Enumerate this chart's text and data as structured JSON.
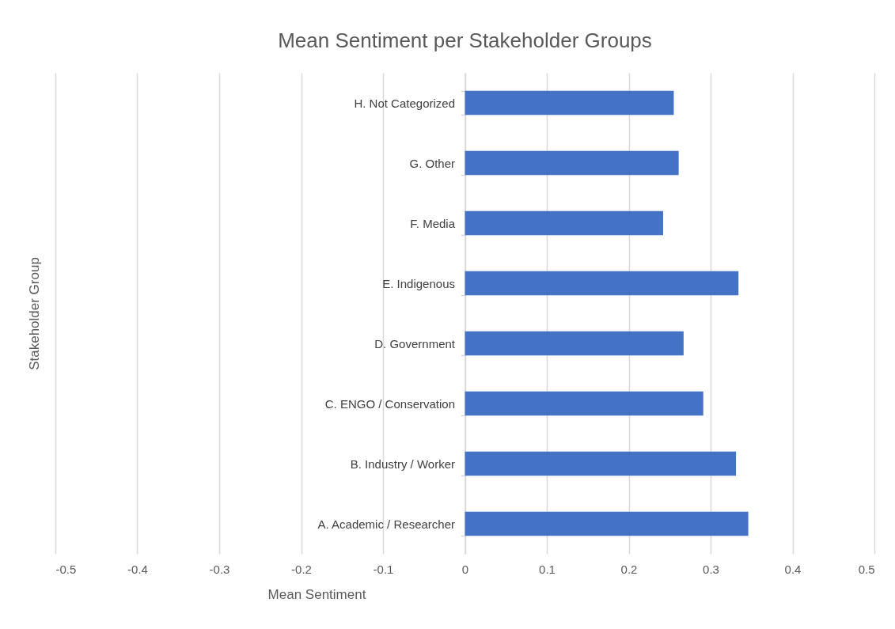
{
  "chart_data": {
    "type": "bar",
    "orientation": "horizontal",
    "title": "Mean Sentiment per Stakeholder Groups",
    "xlabel": "Mean Sentiment",
    "ylabel": "Stakeholder Group",
    "categories": [
      "H. Not Categorized",
      "G. Other",
      "F. Media",
      "E. Indigenous",
      "D. Government",
      "C. ENGO / Conservation",
      "B. Industry / Worker",
      "A. Academic / Researcher"
    ],
    "values": [
      0.255,
      0.261,
      0.242,
      0.334,
      0.267,
      0.291,
      0.331,
      0.346
    ],
    "color": "#4472c4",
    "xlim": [
      -0.5,
      0.5
    ],
    "xticks": [
      -0.5,
      -0.4,
      -0.3,
      -0.2,
      -0.1,
      0,
      0.1,
      0.2,
      0.3,
      0.4,
      0.5
    ],
    "grid": "x"
  }
}
